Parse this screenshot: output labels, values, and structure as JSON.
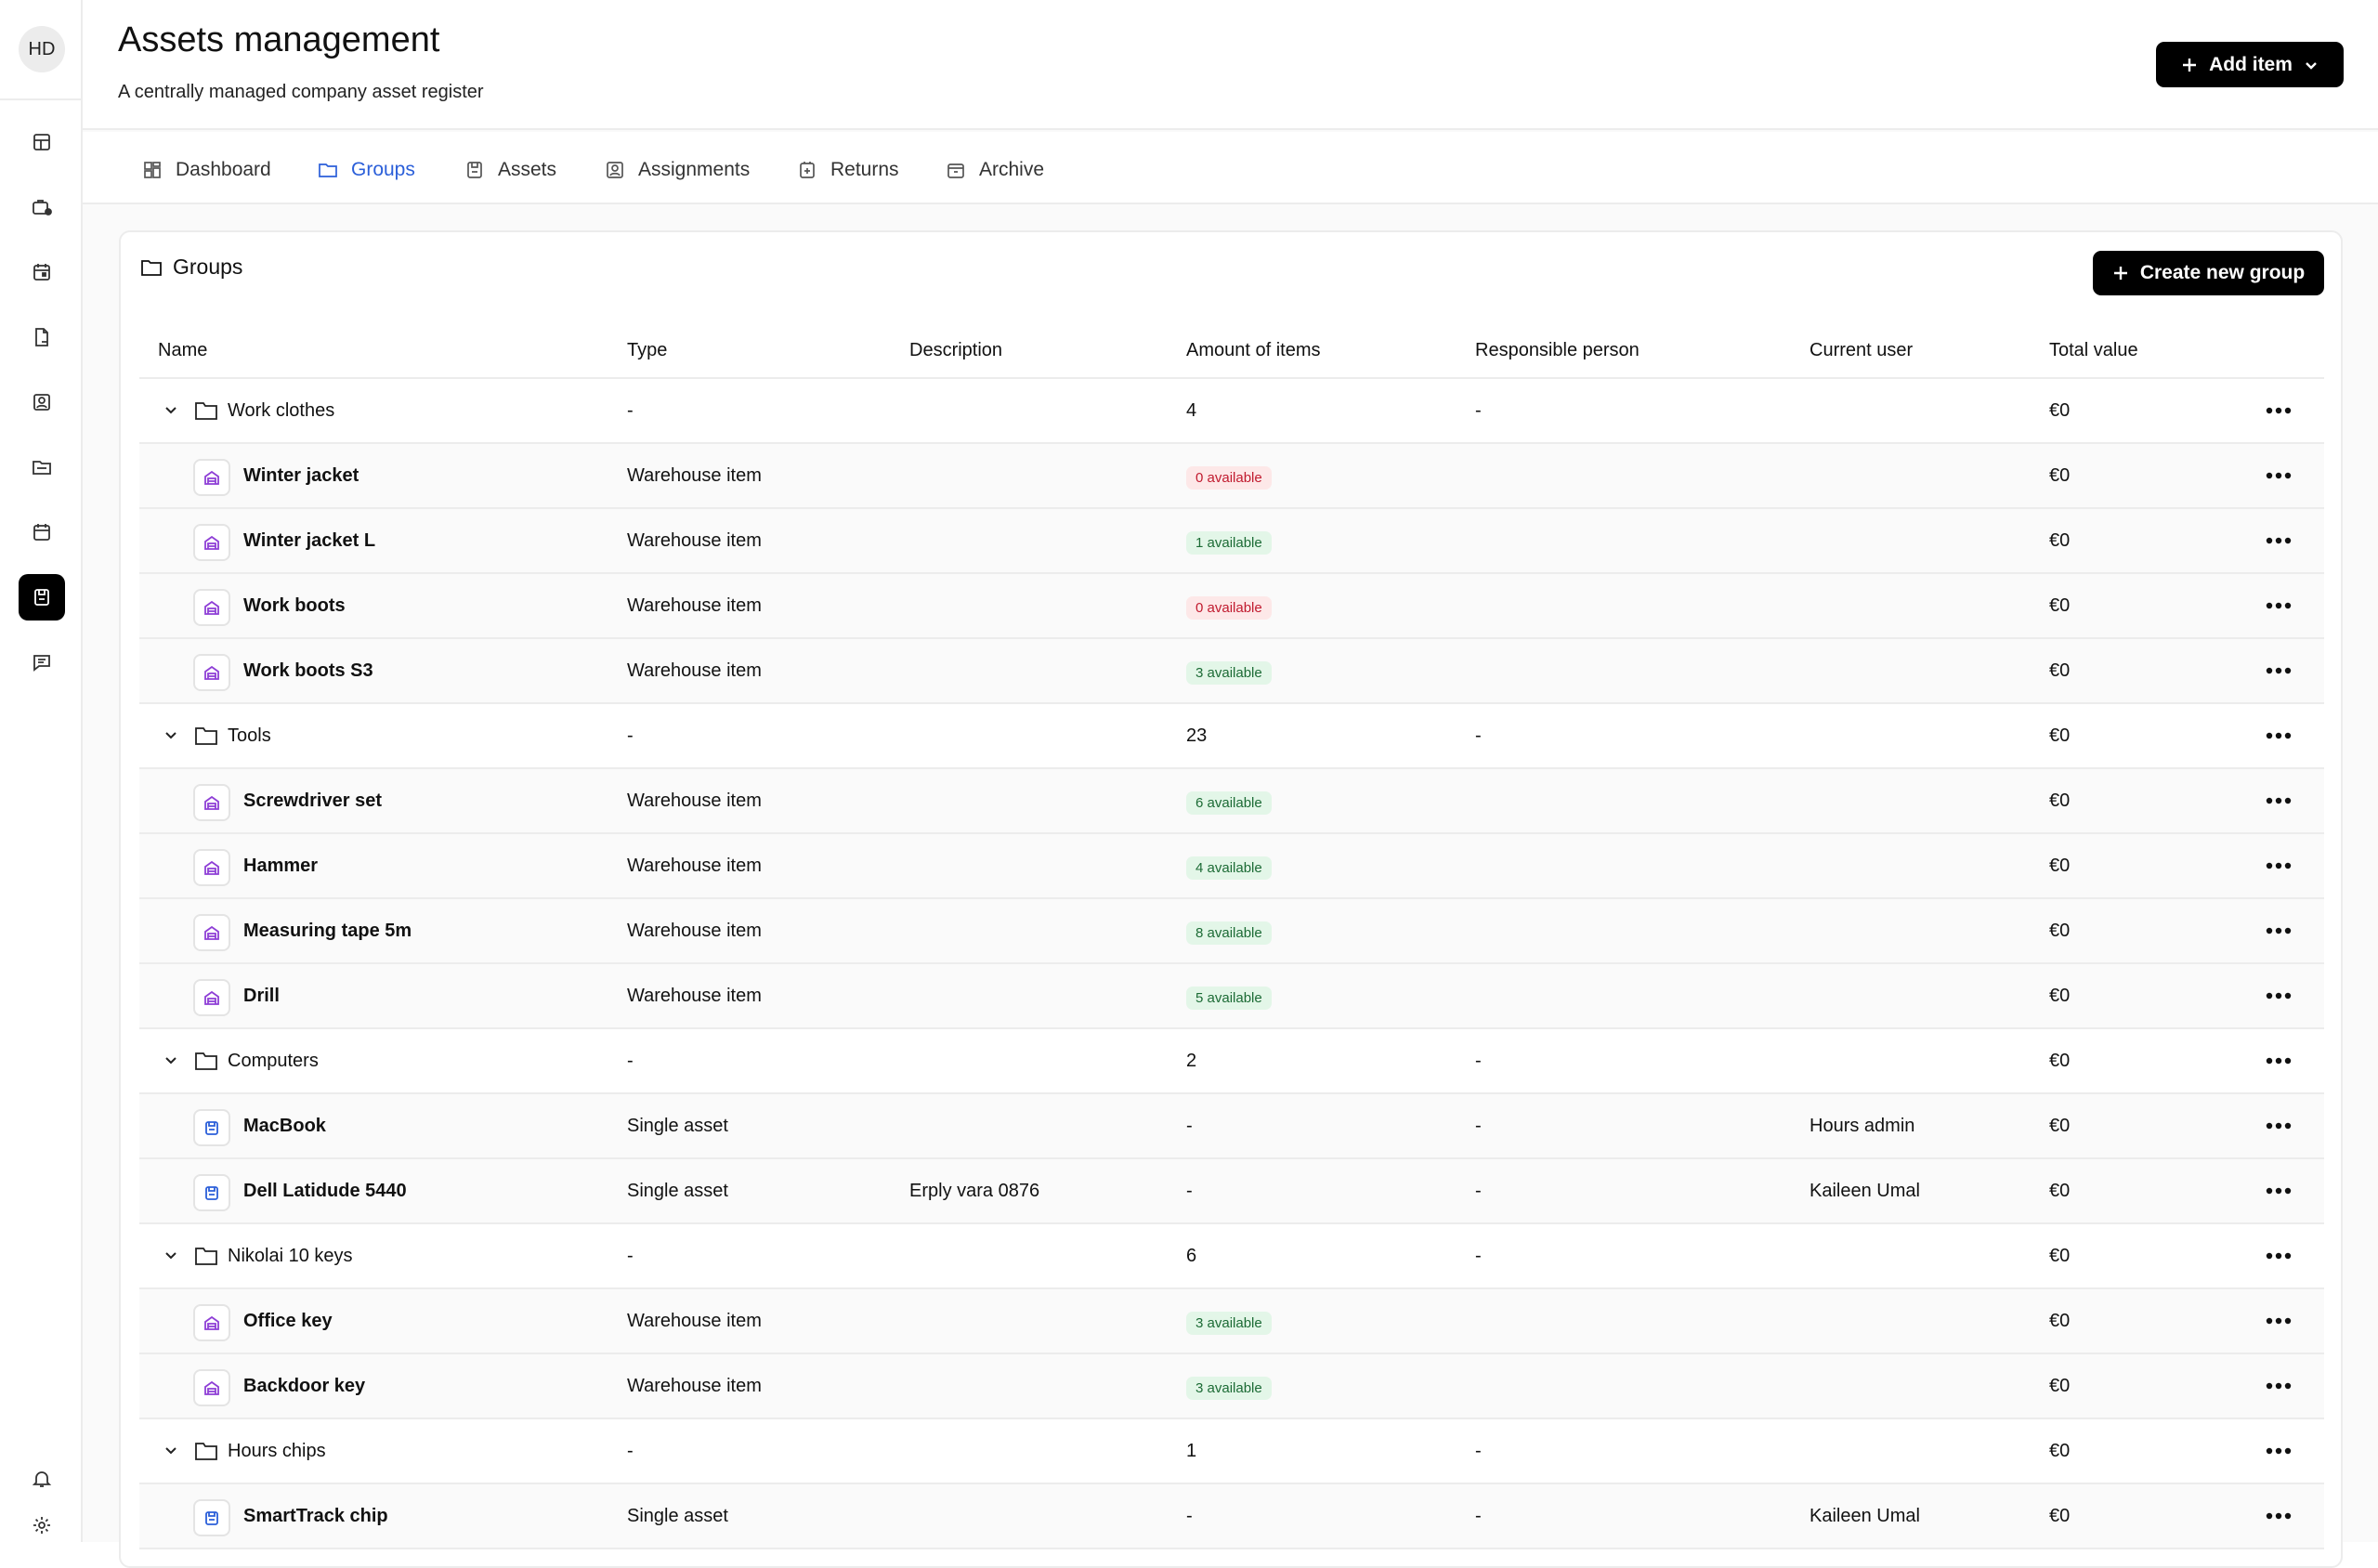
{
  "user": {
    "initials": "HD"
  },
  "sidebar": {
    "nav": [
      "dashboard-icon",
      "briefcase-icon",
      "calendar-icon",
      "document-icon",
      "contact-icon",
      "folder-icon",
      "schedule-icon",
      "assets-icon",
      "chat-icon"
    ],
    "bottom": [
      "bell-icon",
      "gear-icon"
    ]
  },
  "header": {
    "title": "Assets management",
    "subtitle": "A centrally managed company asset register",
    "add_button": "Add item"
  },
  "tabs": [
    {
      "label": "Dashboard",
      "active": false
    },
    {
      "label": "Groups",
      "active": true
    },
    {
      "label": "Assets",
      "active": false
    },
    {
      "label": "Assignments",
      "active": false
    },
    {
      "label": "Returns",
      "active": false
    },
    {
      "label": "Archive",
      "active": false
    }
  ],
  "card": {
    "title": "Groups",
    "create_button": "Create new group"
  },
  "columns": [
    "Name",
    "Type",
    "Description",
    "Amount of items",
    "Responsible person",
    "Current user",
    "Total value"
  ],
  "rows": [
    {
      "kind": "group",
      "name": "Work clothes",
      "type": "-",
      "description": "",
      "amount": "4",
      "responsible": "-",
      "current_user": "",
      "total": "€0"
    },
    {
      "kind": "item",
      "icon": "warehouse",
      "name": "Winter jacket",
      "type": "Warehouse item",
      "description": "",
      "badge": "0 available",
      "badge_color": "red",
      "responsible": "",
      "current_user": "",
      "total": "€0"
    },
    {
      "kind": "item",
      "icon": "warehouse",
      "name": "Winter jacket L",
      "type": "Warehouse item",
      "description": "",
      "badge": "1 available",
      "badge_color": "green",
      "responsible": "",
      "current_user": "",
      "total": "€0"
    },
    {
      "kind": "item",
      "icon": "warehouse",
      "name": "Work boots",
      "type": "Warehouse item",
      "description": "",
      "badge": "0 available",
      "badge_color": "red",
      "responsible": "",
      "current_user": "",
      "total": "€0"
    },
    {
      "kind": "item",
      "icon": "warehouse",
      "name": "Work boots S3",
      "type": "Warehouse item",
      "description": "",
      "badge": "3 available",
      "badge_color": "green",
      "responsible": "",
      "current_user": "",
      "total": "€0"
    },
    {
      "kind": "group",
      "name": "Tools",
      "type": "-",
      "description": "",
      "amount": "23",
      "responsible": "-",
      "current_user": "",
      "total": "€0"
    },
    {
      "kind": "item",
      "icon": "warehouse",
      "name": "Screwdriver set",
      "type": "Warehouse item",
      "description": "",
      "badge": "6 available",
      "badge_color": "green",
      "responsible": "",
      "current_user": "",
      "total": "€0"
    },
    {
      "kind": "item",
      "icon": "warehouse",
      "name": "Hammer",
      "type": "Warehouse item",
      "description": "",
      "badge": "4 available",
      "badge_color": "green",
      "responsible": "",
      "current_user": "",
      "total": "€0"
    },
    {
      "kind": "item",
      "icon": "warehouse",
      "name": "Measuring tape 5m",
      "type": "Warehouse item",
      "description": "",
      "badge": "8 available",
      "badge_color": "green",
      "responsible": "",
      "current_user": "",
      "total": "€0"
    },
    {
      "kind": "item",
      "icon": "warehouse",
      "name": "Drill",
      "type": "Warehouse item",
      "description": "",
      "badge": "5 available",
      "badge_color": "green",
      "responsible": "",
      "current_user": "",
      "total": "€0"
    },
    {
      "kind": "group",
      "name": "Computers",
      "type": "-",
      "description": "",
      "amount": "2",
      "responsible": "-",
      "current_user": "",
      "total": "€0"
    },
    {
      "kind": "item",
      "icon": "asset",
      "name": "MacBook",
      "type": "Single asset",
      "description": "",
      "amount": "-",
      "responsible": "-",
      "current_user": "Hours admin",
      "total": "€0"
    },
    {
      "kind": "item",
      "icon": "asset",
      "name": "Dell Latidude 5440",
      "type": "Single asset",
      "description": "Erply vara 0876",
      "amount": "-",
      "responsible": "-",
      "current_user": "Kaileen Umal",
      "total": "€0"
    },
    {
      "kind": "group",
      "name": "Nikolai 10 keys",
      "type": "-",
      "description": "",
      "amount": "6",
      "responsible": "-",
      "current_user": "",
      "total": "€0"
    },
    {
      "kind": "item",
      "icon": "warehouse",
      "name": "Office key",
      "type": "Warehouse item",
      "description": "",
      "badge": "3 available",
      "badge_color": "green",
      "responsible": "",
      "current_user": "",
      "total": "€0"
    },
    {
      "kind": "item",
      "icon": "warehouse",
      "name": "Backdoor key",
      "type": "Warehouse item",
      "description": "",
      "badge": "3 available",
      "badge_color": "green",
      "responsible": "",
      "current_user": "",
      "total": "€0"
    },
    {
      "kind": "group",
      "name": "Hours chips",
      "type": "-",
      "description": "",
      "amount": "1",
      "responsible": "-",
      "current_user": "",
      "total": "€0"
    },
    {
      "kind": "item",
      "icon": "asset",
      "name": "SmartTrack chip",
      "type": "Single asset",
      "description": "",
      "amount": "-",
      "responsible": "-",
      "current_user": "Kaileen Umal",
      "total": "€0"
    }
  ]
}
